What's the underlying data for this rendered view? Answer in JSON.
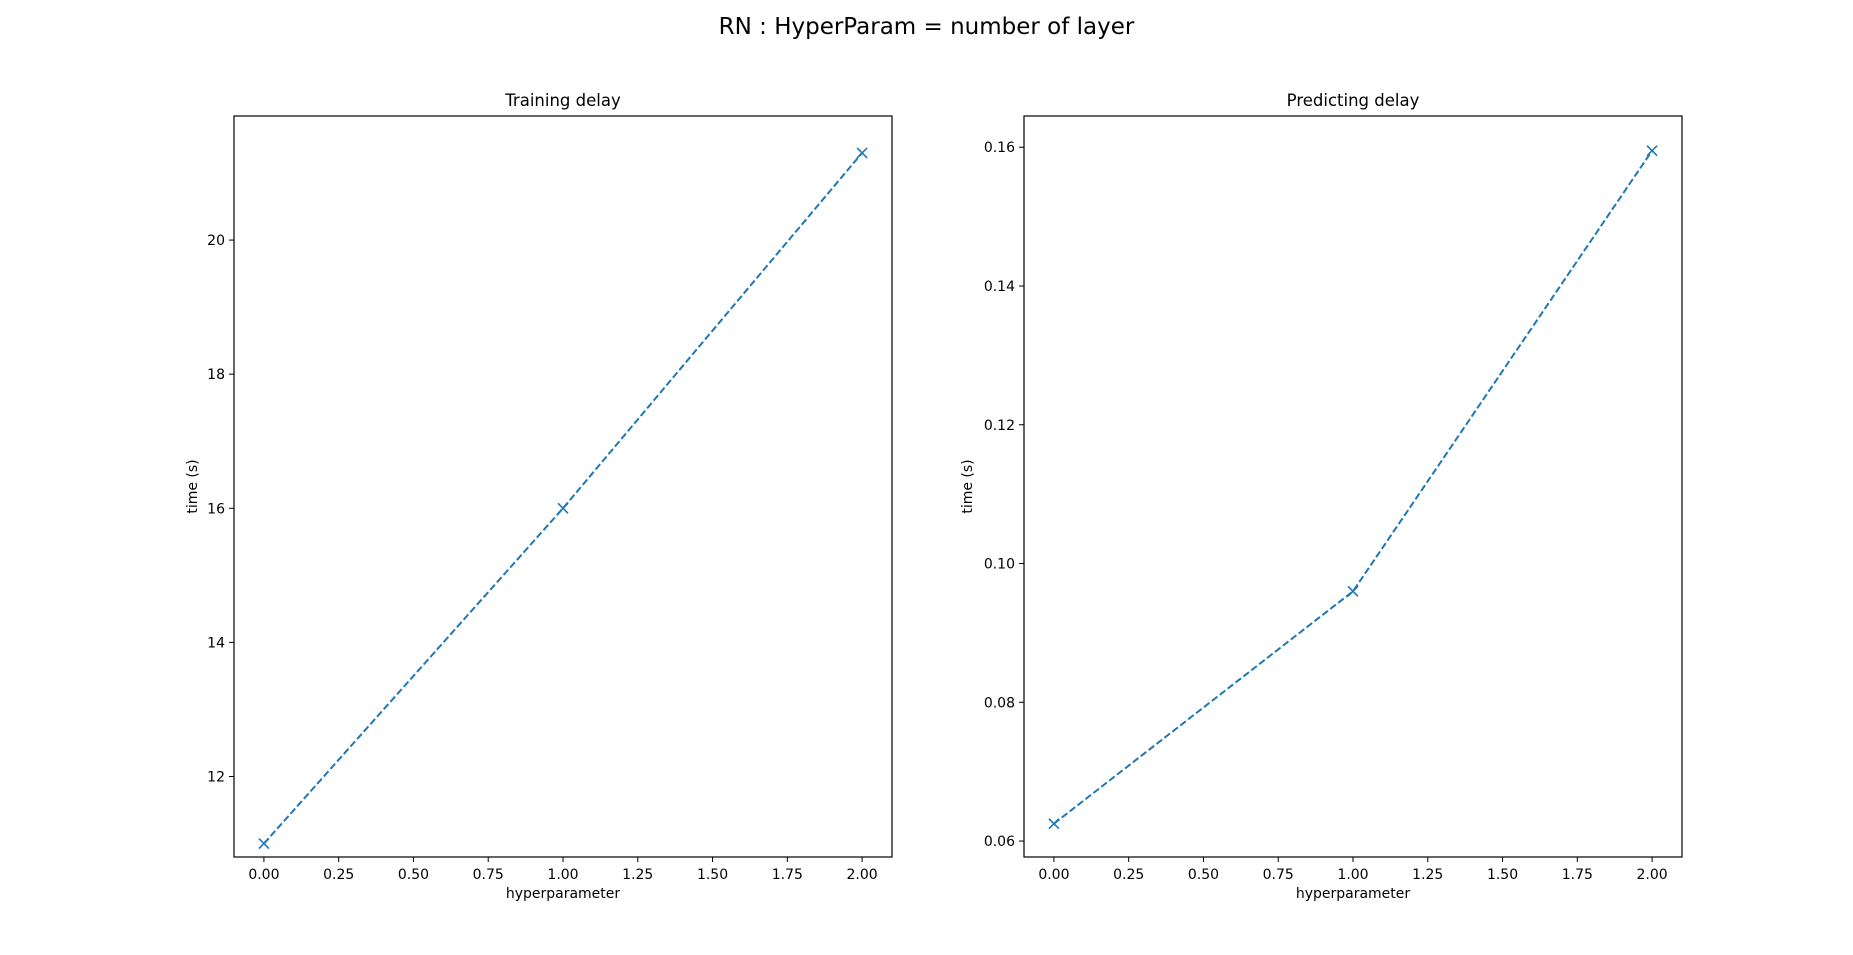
{
  "figure": {
    "suptitle": "RN : HyperParam = number of layer"
  },
  "colors": {
    "series": "#1f77b4",
    "axes": "#000000",
    "background": "#ffffff"
  },
  "chart_data": [
    {
      "type": "line",
      "title": "Training delay",
      "xlabel": "hyperparameter",
      "ylabel": "time (s)",
      "xlim": [
        -0.1,
        2.1
      ],
      "ylim": [
        10.8,
        21.85
      ],
      "xticks": [
        0.0,
        0.25,
        0.5,
        0.75,
        1.0,
        1.25,
        1.5,
        1.75,
        2.0
      ],
      "xtick_labels": [
        "0.00",
        "0.25",
        "0.50",
        "0.75",
        "1.00",
        "1.25",
        "1.50",
        "1.75",
        "2.00"
      ],
      "yticks": [
        12,
        14,
        16,
        18,
        20
      ],
      "ytick_labels": [
        "12",
        "14",
        "16",
        "18",
        "20"
      ],
      "grid": false,
      "series": [
        {
          "x": [
            0,
            1,
            2
          ],
          "y": [
            11.0,
            16.0,
            21.3
          ],
          "linestyle": "dashed",
          "marker": "x"
        }
      ]
    },
    {
      "type": "line",
      "title": "Predicting delay",
      "xlabel": "hyperparameter",
      "ylabel": "time (s)",
      "xlim": [
        -0.1,
        2.1
      ],
      "ylim": [
        0.0577,
        0.1645
      ],
      "xticks": [
        0.0,
        0.25,
        0.5,
        0.75,
        1.0,
        1.25,
        1.5,
        1.75,
        2.0
      ],
      "xtick_labels": [
        "0.00",
        "0.25",
        "0.50",
        "0.75",
        "1.00",
        "1.25",
        "1.50",
        "1.75",
        "2.00"
      ],
      "yticks": [
        0.06,
        0.08,
        0.1,
        0.12,
        0.14,
        0.16
      ],
      "ytick_labels": [
        "0.06",
        "0.08",
        "0.10",
        "0.12",
        "0.14",
        "0.16"
      ],
      "grid": false,
      "series": [
        {
          "x": [
            0,
            1,
            2
          ],
          "y": [
            0.0625,
            0.096,
            0.1595
          ],
          "linestyle": "dashed",
          "marker": "x"
        }
      ]
    }
  ]
}
